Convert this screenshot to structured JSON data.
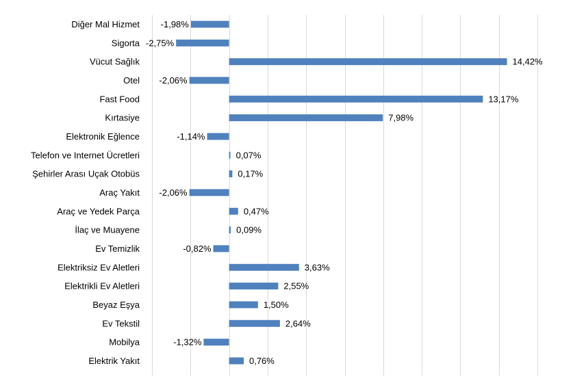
{
  "chart_data": {
    "type": "bar",
    "orientation": "horizontal",
    "title": "",
    "xlabel": "",
    "ylabel": "",
    "grid": true,
    "xlim": [
      -4,
      16
    ],
    "bar_color": "#4F81BD",
    "categories": [
      "Diğer Mal Hizmet",
      "Sigorta",
      "Vücut Sağlık",
      "Otel",
      "Fast Food",
      "Kırtasiye",
      "Elektronik Eğlence",
      "Telefon ve Internet Ücretleri",
      "Şehirler Arası Uçak Otobüs",
      "Araç Yakıt",
      "Araç ve Yedek Parça",
      "İlaç ve Muayene",
      "Ev Temizlik",
      "Elektriksiz Ev Aletleri",
      "Elektrikli Ev Aletleri",
      "Beyaz Eşya",
      "Ev Tekstil",
      "Mobilya",
      "Elektrik Yakıt"
    ],
    "values": [
      -1.98,
      -2.75,
      14.42,
      -2.06,
      13.17,
      7.98,
      -1.14,
      0.07,
      0.17,
      -2.06,
      0.47,
      0.09,
      -0.82,
      3.63,
      2.55,
      1.5,
      2.64,
      -1.32,
      0.76
    ],
    "data_labels": [
      "-1,98%",
      "-2,75%",
      "14,42%",
      "-2,06%",
      "13,17%",
      "7,98%",
      "-1,14%",
      "0,07%",
      "0,17%",
      "-2,06%",
      "0,47%",
      "0,09%",
      "-0,82%",
      "3,63%",
      "2,55%",
      "1,50%",
      "2,64%",
      "-1,32%",
      "0,76%"
    ]
  }
}
